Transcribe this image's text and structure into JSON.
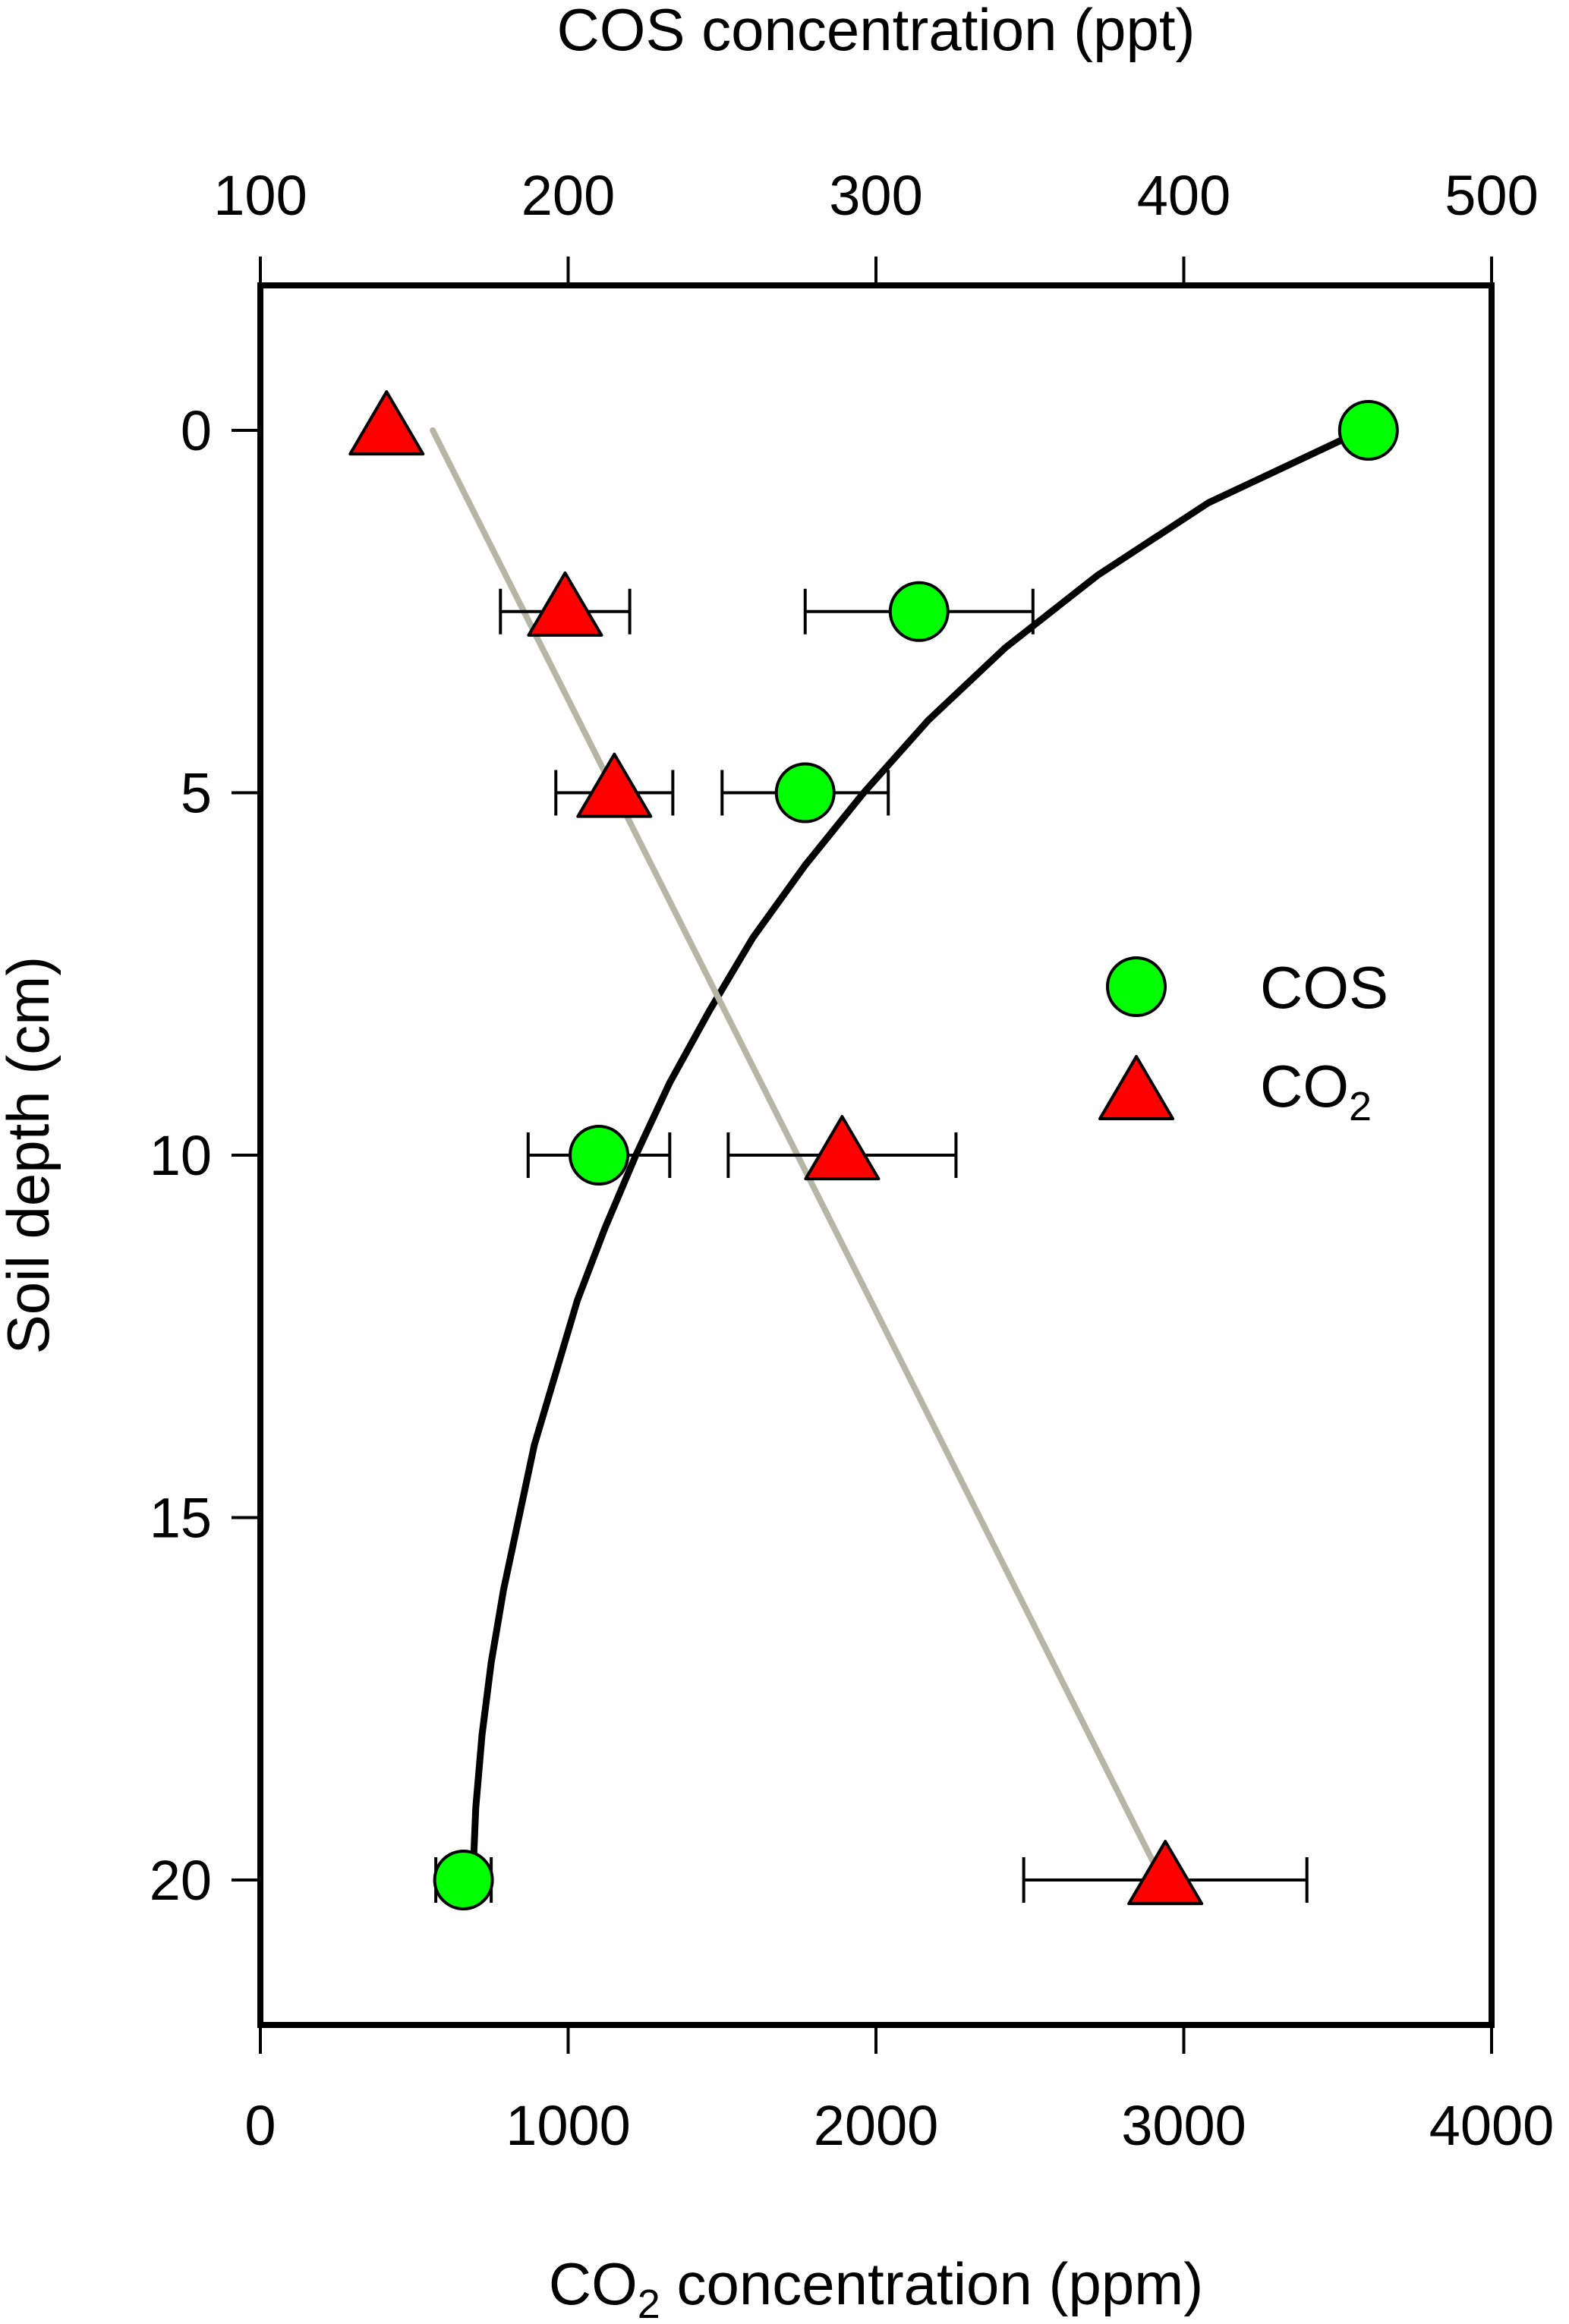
{
  "chart_data": {
    "type": "scatter",
    "top_axis": {
      "label": "COS concentration (ppt)",
      "range": [
        100,
        500
      ],
      "ticks": [
        100,
        200,
        300,
        400,
        500
      ]
    },
    "bottom_axis": {
      "label_parts": [
        "CO",
        "2",
        " concentration (ppm)"
      ],
      "range": [
        0,
        4000
      ],
      "ticks": [
        0,
        1000,
        2000,
        3000,
        4000
      ]
    },
    "y_axis": {
      "label": "Soil depth (cm)",
      "range": [
        -2,
        22
      ],
      "inverted": true,
      "ticks": [
        0,
        5,
        10,
        15,
        20
      ]
    },
    "legend": {
      "position": "right-middle",
      "entries": [
        {
          "label_parts": [
            "COS",
            ""
          ],
          "marker": "circle"
        },
        {
          "label_parts": [
            "CO",
            "2"
          ],
          "marker": "triangle"
        }
      ]
    },
    "series": [
      {
        "key": "cos",
        "axis": "top",
        "marker": "circle",
        "color": "#00ff00",
        "points": [
          {
            "depth": 0,
            "value": 460,
            "err": 0
          },
          {
            "depth": 2.5,
            "value": 314,
            "err": 37
          },
          {
            "depth": 5,
            "value": 277,
            "err": 27
          },
          {
            "depth": 10,
            "value": 210,
            "err": 23
          },
          {
            "depth": 20,
            "value": 166,
            "err": 9
          }
        ],
        "fit": {
          "color": "#000000",
          "points": [
            [
              458,
              0
            ],
            [
              408,
              1
            ],
            [
              372,
              2
            ],
            [
              342,
              3
            ],
            [
              317,
              4
            ],
            [
              296,
              5
            ],
            [
              277,
              6
            ],
            [
              260,
              7
            ],
            [
              246,
              8
            ],
            [
              233,
              9
            ],
            [
              222,
              10
            ],
            [
              212,
              11
            ],
            [
              203,
              12
            ],
            [
              196,
              13
            ],
            [
              189,
              14
            ],
            [
              184,
              15
            ],
            [
              179,
              16
            ],
            [
              175,
              17
            ],
            [
              172,
              18
            ],
            [
              170,
              19
            ],
            [
              169,
              20
            ]
          ]
        }
      },
      {
        "key": "co2",
        "axis": "bottom",
        "marker": "triangle",
        "color": "#ff0000",
        "points": [
          {
            "depth": 0,
            "value": 410,
            "err": 0
          },
          {
            "depth": 2.5,
            "value": 990,
            "err": 210
          },
          {
            "depth": 5,
            "value": 1150,
            "err": 190
          },
          {
            "depth": 10,
            "value": 1890,
            "err": 370
          },
          {
            "depth": 20,
            "value": 2940,
            "err": 460
          }
        ],
        "fit": {
          "color": "#b6b6a6",
          "points": [
            [
              560,
              0
            ],
            [
              2930,
              20
            ]
          ]
        }
      }
    ],
    "grid": false
  }
}
